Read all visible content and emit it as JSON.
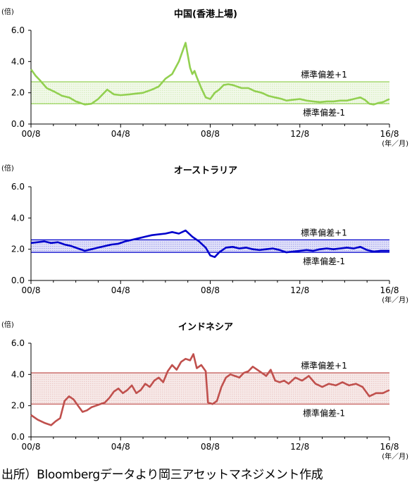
{
  "unit_label": "(倍)",
  "xaxis_unit": "(年／月)",
  "band_upper_label": "標準偏差+1",
  "band_lower_label": "標準偏差-1",
  "source_note": "出所）Bloombergデータより岡三アセットマネジメント作成",
  "chart_data": [
    {
      "type": "line",
      "title": "中国(香港上場)",
      "ylabel": "(倍)",
      "ylim": [
        0,
        6
      ],
      "yticks": [
        "0.0",
        "2.0",
        "4.0",
        "6.0"
      ],
      "xticks": [
        "00/8",
        "04/8",
        "08/8",
        "12/8",
        "16/8"
      ],
      "color": "#92d050",
      "band": [
        1.3,
        2.7
      ],
      "x": [
        2000.6,
        2000.8,
        2001.0,
        2001.3,
        2001.6,
        2002.0,
        2002.3,
        2002.6,
        2003.0,
        2003.3,
        2003.6,
        2004.0,
        2004.3,
        2004.6,
        2005.0,
        2005.3,
        2005.6,
        2006.0,
        2006.3,
        2006.6,
        2006.9,
        2007.2,
        2007.5,
        2007.7,
        2007.8,
        2007.9,
        2008.0,
        2008.2,
        2008.4,
        2008.6,
        2008.8,
        2009.0,
        2009.2,
        2009.4,
        2009.6,
        2009.8,
        2010.0,
        2010.3,
        2010.6,
        2010.9,
        2011.2,
        2011.5,
        2011.8,
        2012.0,
        2012.3,
        2012.6,
        2012.9,
        2013.2,
        2013.5,
        2013.8,
        2014.1,
        2014.4,
        2014.7,
        2015.0,
        2015.3,
        2015.5,
        2015.7,
        2015.9,
        2016.1,
        2016.3,
        2016.6
      ],
      "values": [
        3.5,
        3.1,
        2.8,
        2.3,
        2.1,
        1.8,
        1.7,
        1.45,
        1.25,
        1.3,
        1.6,
        2.2,
        1.9,
        1.85,
        1.9,
        1.95,
        2.0,
        2.2,
        2.4,
        2.9,
        3.2,
        4.0,
        5.2,
        3.6,
        3.2,
        3.4,
        3.0,
        2.3,
        1.7,
        1.6,
        2.0,
        2.2,
        2.5,
        2.55,
        2.5,
        2.4,
        2.3,
        2.3,
        2.1,
        2.0,
        1.8,
        1.7,
        1.6,
        1.5,
        1.55,
        1.6,
        1.5,
        1.45,
        1.4,
        1.45,
        1.45,
        1.5,
        1.5,
        1.6,
        1.7,
        1.55,
        1.3,
        1.25,
        1.35,
        1.4,
        1.6
      ]
    },
    {
      "type": "line",
      "title": "オーストラリア",
      "ylabel": "(倍)",
      "ylim": [
        0,
        6
      ],
      "yticks": [
        "0.0",
        "2.0",
        "4.0",
        "6.0"
      ],
      "xticks": [
        "00/8",
        "04/8",
        "08/8",
        "12/8",
        "16/8"
      ],
      "color": "#0000cc",
      "band": [
        1.8,
        2.6
      ],
      "x": [
        2000.6,
        2000.9,
        2001.2,
        2001.5,
        2001.8,
        2002.1,
        2002.4,
        2002.7,
        2003.0,
        2003.3,
        2003.6,
        2003.9,
        2004.2,
        2004.5,
        2004.8,
        2005.1,
        2005.4,
        2005.7,
        2006.0,
        2006.3,
        2006.6,
        2006.9,
        2007.2,
        2007.5,
        2007.8,
        2008.1,
        2008.4,
        2008.6,
        2008.8,
        2009.0,
        2009.3,
        2009.6,
        2009.9,
        2010.2,
        2010.5,
        2010.8,
        2011.1,
        2011.4,
        2011.7,
        2012.0,
        2012.3,
        2012.6,
        2012.9,
        2013.2,
        2013.5,
        2013.8,
        2014.1,
        2014.4,
        2014.7,
        2015.0,
        2015.3,
        2015.6,
        2015.9,
        2016.2,
        2016.6
      ],
      "values": [
        2.4,
        2.45,
        2.5,
        2.4,
        2.45,
        2.3,
        2.2,
        2.05,
        1.9,
        2.0,
        2.1,
        2.2,
        2.3,
        2.35,
        2.5,
        2.6,
        2.7,
        2.8,
        2.9,
        2.95,
        3.0,
        3.1,
        3.0,
        3.2,
        2.8,
        2.5,
        2.1,
        1.6,
        1.5,
        1.8,
        2.1,
        2.15,
        2.05,
        2.1,
        2.0,
        1.95,
        2.0,
        2.05,
        1.95,
        1.8,
        1.85,
        1.9,
        1.95,
        1.9,
        2.0,
        2.05,
        2.0,
        2.05,
        2.1,
        2.05,
        2.15,
        1.95,
        1.85,
        1.9,
        1.9
      ]
    },
    {
      "type": "line",
      "title": "インドネシア",
      "ylabel": "(倍)",
      "ylim": [
        0,
        6
      ],
      "yticks": [
        "0.0",
        "2.0",
        "4.0",
        "6.0"
      ],
      "xticks": [
        "00/8",
        "04/8",
        "08/8",
        "12/8",
        "16/8"
      ],
      "color": "#c0504d",
      "band": [
        2.1,
        4.1
      ],
      "x": [
        2000.6,
        2000.9,
        2001.2,
        2001.5,
        2001.7,
        2001.9,
        2002.1,
        2002.3,
        2002.5,
        2002.7,
        2002.9,
        2003.1,
        2003.3,
        2003.5,
        2003.7,
        2003.9,
        2004.1,
        2004.3,
        2004.5,
        2004.7,
        2004.9,
        2005.1,
        2005.3,
        2005.5,
        2005.7,
        2005.9,
        2006.1,
        2006.3,
        2006.5,
        2006.7,
        2006.9,
        2007.1,
        2007.3,
        2007.5,
        2007.7,
        2007.85,
        2008.0,
        2008.2,
        2008.4,
        2008.5,
        2008.7,
        2008.9,
        2009.1,
        2009.3,
        2009.5,
        2009.7,
        2009.9,
        2010.1,
        2010.3,
        2010.5,
        2010.7,
        2010.9,
        2011.1,
        2011.3,
        2011.5,
        2011.7,
        2011.9,
        2012.1,
        2012.4,
        2012.7,
        2013.0,
        2013.3,
        2013.6,
        2013.9,
        2014.2,
        2014.5,
        2014.8,
        2015.1,
        2015.4,
        2015.7,
        2016.0,
        2016.3,
        2016.6
      ],
      "values": [
        1.4,
        1.1,
        0.9,
        0.75,
        1.0,
        1.2,
        2.3,
        2.6,
        2.4,
        2.0,
        1.6,
        1.7,
        1.9,
        2.0,
        2.1,
        2.2,
        2.5,
        2.9,
        3.1,
        2.8,
        3.0,
        3.3,
        2.8,
        3.0,
        3.4,
        3.2,
        3.6,
        3.8,
        3.5,
        4.2,
        4.6,
        4.3,
        4.8,
        5.0,
        4.9,
        5.3,
        4.4,
        4.6,
        4.2,
        2.2,
        2.1,
        2.3,
        3.2,
        3.8,
        4.0,
        3.9,
        3.8,
        4.1,
        4.2,
        4.5,
        4.3,
        4.1,
        3.9,
        4.3,
        3.6,
        3.5,
        3.6,
        3.4,
        3.8,
        3.6,
        3.9,
        3.4,
        3.2,
        3.4,
        3.3,
        3.5,
        3.3,
        3.4,
        3.2,
        2.6,
        2.8,
        2.8,
        3.0
      ]
    }
  ]
}
